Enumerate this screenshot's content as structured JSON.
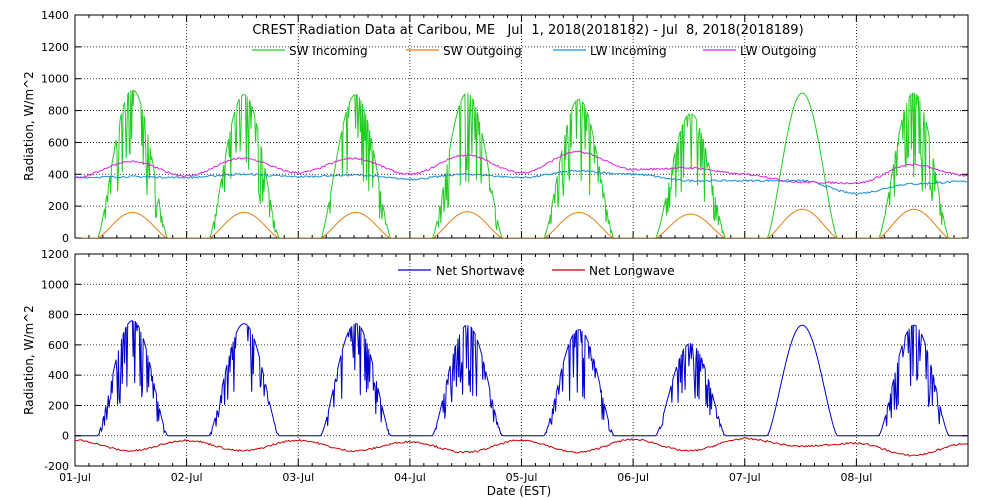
{
  "chart_data": [
    {
      "type": "line",
      "title": "CREST Radiation Data at Caribou, ME   Jul  1, 2018(2018182) - Jul  8, 2018(2018189)",
      "ylabel": "Radiation, W/m^2",
      "ylim": [
        0,
        1400
      ],
      "yticks": [
        0,
        200,
        400,
        600,
        800,
        1000,
        1200,
        1400
      ],
      "grid": true,
      "legend_position": "top",
      "series": [
        {
          "name": "SW Incoming",
          "color": "#22cc22",
          "daily_peaks": [
            930,
            900,
            900,
            910,
            870,
            780,
            910
          ],
          "shape": "diurnal-cloudy"
        },
        {
          "name": "SW Outgoing",
          "color": "#e07f10",
          "daily_peaks": [
            160,
            160,
            160,
            165,
            160,
            150,
            180
          ],
          "shape": "diurnal"
        },
        {
          "name": "LW Incoming",
          "color": "#1a8fd0",
          "points": [
            [
              0,
              380
            ],
            [
              0.5,
              385
            ],
            [
              1,
              380
            ],
            [
              1.5,
              400
            ],
            [
              2,
              385
            ],
            [
              2.5,
              395
            ],
            [
              3,
              370
            ],
            [
              3.5,
              400
            ],
            [
              4,
              380
            ],
            [
              4.5,
              420
            ],
            [
              5,
              400
            ],
            [
              5.5,
              360
            ],
            [
              6,
              360
            ],
            [
              6.5,
              360
            ],
            [
              7,
              280
            ],
            [
              7.5,
              340
            ],
            [
              8,
              355
            ]
          ]
        },
        {
          "name": "LW Outgoing",
          "color": "#dd22dd",
          "points": [
            [
              0,
              380
            ],
            [
              0.5,
              480
            ],
            [
              1,
              390
            ],
            [
              1.5,
              500
            ],
            [
              2,
              410
            ],
            [
              2.5,
              500
            ],
            [
              3,
              400
            ],
            [
              3.5,
              520
            ],
            [
              4,
              410
            ],
            [
              4.5,
              540
            ],
            [
              5,
              430
            ],
            [
              5.5,
              440
            ],
            [
              6,
              400
            ],
            [
              6.5,
              350
            ],
            [
              7,
              345
            ],
            [
              7.5,
              460
            ],
            [
              8,
              390
            ]
          ]
        }
      ]
    },
    {
      "type": "line",
      "xlabel": "Date (EST)",
      "ylabel": "Radiation, W/m^2",
      "ylim": [
        -200,
        1200
      ],
      "yticks": [
        -200,
        0,
        200,
        400,
        600,
        800,
        1000,
        1200
      ],
      "grid": true,
      "legend_position": "top",
      "series": [
        {
          "name": "Net Shortwave",
          "color": "#0000c8",
          "daily_peaks": [
            760,
            740,
            740,
            730,
            700,
            610,
            730
          ],
          "shape": "diurnal-cloudy"
        },
        {
          "name": "Net Longwave",
          "color": "#c80000",
          "points": [
            [
              0,
              -30
            ],
            [
              0.5,
              -100
            ],
            [
              1,
              -30
            ],
            [
              1.5,
              -100
            ],
            [
              2,
              -30
            ],
            [
              2.5,
              -100
            ],
            [
              3,
              -40
            ],
            [
              3.5,
              -110
            ],
            [
              4,
              -30
            ],
            [
              4.5,
              -110
            ],
            [
              5,
              -25
            ],
            [
              5.5,
              -100
            ],
            [
              6,
              -20
            ],
            [
              6.5,
              -70
            ],
            [
              7,
              -50
            ],
            [
              7.5,
              -130
            ],
            [
              8,
              -50
            ]
          ]
        }
      ]
    }
  ],
  "x_axis": {
    "tick_labels": [
      "01-Jul",
      "02-Jul",
      "03-Jul",
      "04-Jul",
      "05-Jul",
      "06-Jul",
      "07-Jul",
      "08-Jul"
    ],
    "xlim_days": [
      0,
      8
    ]
  },
  "text": {
    "title": "CREST Radiation Data at Caribou, ME   Jul  1, 2018(2018182) - Jul  8, 2018(2018189)",
    "ylabel_top": "Radiation, W/m^2",
    "ylabel_bottom": "Radiation, W/m^2",
    "xlabel": "Date (EST)",
    "legend_top": [
      "SW Incoming",
      "SW Outgoing",
      "LW Incoming",
      "LW Outgoing"
    ],
    "legend_bottom": [
      "Net Shortwave",
      "Net Longwave"
    ]
  }
}
